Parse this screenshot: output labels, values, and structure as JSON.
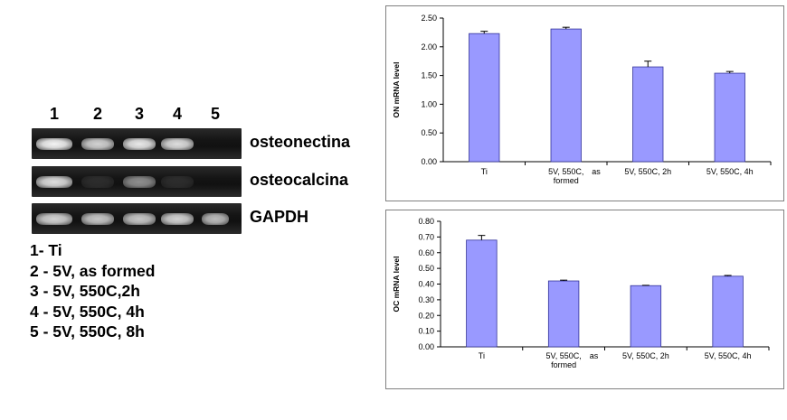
{
  "gel": {
    "lanes": [
      "1",
      "2",
      "3",
      "4",
      "5"
    ],
    "rows": [
      {
        "gene": "osteonectina",
        "intensity": [
          1.0,
          0.85,
          0.95,
          0.9,
          0.0
        ]
      },
      {
        "gene": "osteocalcina",
        "intensity": [
          0.9,
          0.12,
          0.55,
          0.12,
          0.0
        ]
      },
      {
        "gene": "GAPDH",
        "intensity": [
          0.85,
          0.8,
          0.8,
          0.85,
          0.75
        ]
      }
    ],
    "legend": [
      "1- Ti",
      "2 - 5V, as formed",
      "3 - 5V, 550C,2h",
      "4 - 5V, 550C, 4h",
      "5 - 5V, 550C, 8h"
    ]
  },
  "colors": {
    "bar": "#9999ff",
    "bar_stroke": "#333399",
    "gel_background": "#161616",
    "band": "#e8e8e8"
  },
  "chart_data": [
    {
      "type": "bar",
      "ylabel": "ON mRNA level",
      "categories": [
        "Ti",
        "5V, 550C, as formed",
        "5V, 550C, 2h",
        "5V, 550C, 4h"
      ],
      "category_labels": [
        [
          "Ti"
        ],
        [
          "5V, 550C,",
          "formed"
        ],
        [
          "5V, 550C, 2h"
        ],
        [
          "5V, 550C, 4h"
        ]
      ],
      "stray_label": "as",
      "values": [
        2.23,
        2.31,
        1.65,
        1.54
      ],
      "errors": [
        0.04,
        0.03,
        0.1,
        0.03
      ],
      "ylim": [
        0,
        2.5
      ],
      "yticks": [
        "0.00",
        "0.50",
        "1.00",
        "1.50",
        "2.00",
        "2.50"
      ],
      "grid": false,
      "legend": "none"
    },
    {
      "type": "bar",
      "ylabel": "OC mRNA level",
      "categories": [
        "Ti",
        "5V, 550C, as formed",
        "5V, 550C, 2h",
        "5V, 550C, 4h"
      ],
      "category_labels": [
        [
          "Ti"
        ],
        [
          "5V, 550C,",
          "formed"
        ],
        [
          "5V, 550C, 2h"
        ],
        [
          "5V, 550C, 4h"
        ]
      ],
      "stray_label": "as",
      "values": [
        0.68,
        0.42,
        0.39,
        0.45
      ],
      "errors": [
        0.03,
        0.005,
        0.002,
        0.005
      ],
      "ylim": [
        0,
        0.8
      ],
      "yticks": [
        "0.00",
        "0.10",
        "0.20",
        "0.30",
        "0.40",
        "0.50",
        "0.60",
        "0.70",
        "0.80"
      ],
      "grid": false,
      "legend": "none"
    }
  ]
}
